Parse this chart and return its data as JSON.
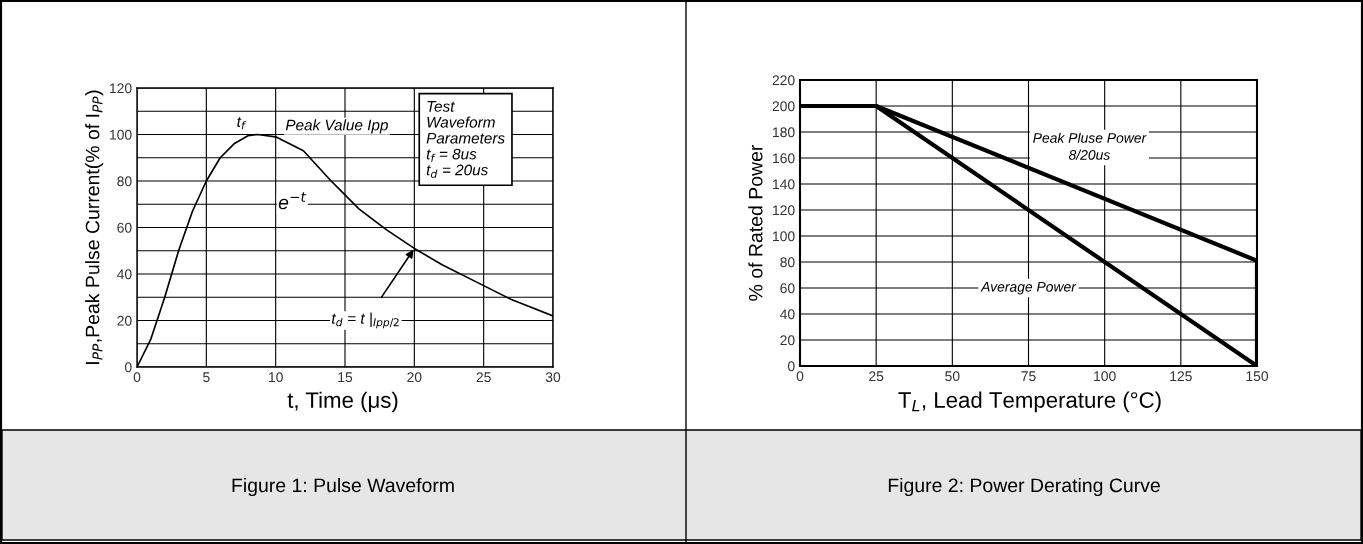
{
  "chart_data": [
    {
      "type": "line",
      "title": "Figure 1: Pulse Waveform",
      "xlabel": "t, Time (μs)",
      "ylabel": "I$_{PP}$,Peak Pulse Current(% of I$_{PP}$)",
      "series": [
        {
          "color": "#000000",
          "x": [
            0,
            1,
            2,
            3,
            4,
            5,
            6,
            7,
            8,
            8.7,
            10,
            12,
            14,
            15,
            16,
            18,
            20,
            22,
            25,
            27,
            30
          ],
          "values": [
            0,
            12,
            30,
            50,
            67,
            80,
            90,
            96,
            99.5,
            100,
            99,
            93,
            80,
            74,
            68,
            59,
            51,
            44,
            35,
            29,
            22
          ]
        }
      ],
      "xlim": [
        0,
        30
      ],
      "xticks": [
        0,
        5,
        10,
        15,
        20,
        25,
        30
      ],
      "ylim": [
        0,
        120
      ],
      "yticks": [
        0,
        {
          "value": 10,
          "label": null
        },
        20,
        {
          "value": 30,
          "label": null
        },
        40,
        {
          "value": 50,
          "label": null
        },
        60,
        {
          "value": 70,
          "label": null
        },
        80,
        {
          "value": 90,
          "label": null
        },
        100,
        {
          "value": 110,
          "label": null
        },
        120
      ],
      "grid": true,
      "legend": false,
      "annotations": [
        {
          "text": "t$_{f}$",
          "x": 8.7,
          "y": 100
        },
        {
          "text": "Peak Value Ipp",
          "x": 8.7,
          "y": 100
        },
        {
          "text": "e$^{−t}$",
          "x": 14,
          "y": 80
        },
        {
          "text": "t$_{d}$ = t |$_{Ipp/2}$",
          "x": 20,
          "y": 51
        },
        "Test\nWaveform\nParameters\nt$_{f}$ = 8us\nt$_{d}$ = 20us"
      ]
    },
    {
      "type": "line",
      "title": "Figure 2: Power Derating Curve",
      "xlabel": "T$_{L}$, Lead Temperature (°C)",
      "ylabel": "% of Rated Power",
      "series": [
        {
          "name": "Peak Pluse Power\n8/20us",
          "color": "#000000",
          "x": [
            0,
            25,
            150,
            150
          ],
          "values": [
            200,
            200,
            81,
            0
          ]
        },
        {
          "name": "Average Power",
          "color": "#000000",
          "x": [
            0,
            25,
            150
          ],
          "values": [
            200,
            200,
            0
          ]
        }
      ],
      "xlim": [
        0,
        150
      ],
      "xticks": [
        0,
        25,
        50,
        75,
        100,
        125,
        150
      ],
      "ylim": [
        0,
        220
      ],
      "yticks": [
        0,
        20,
        40,
        60,
        80,
        100,
        120,
        140,
        160,
        180,
        200,
        220
      ],
      "grid": true,
      "legend": false
    }
  ]
}
